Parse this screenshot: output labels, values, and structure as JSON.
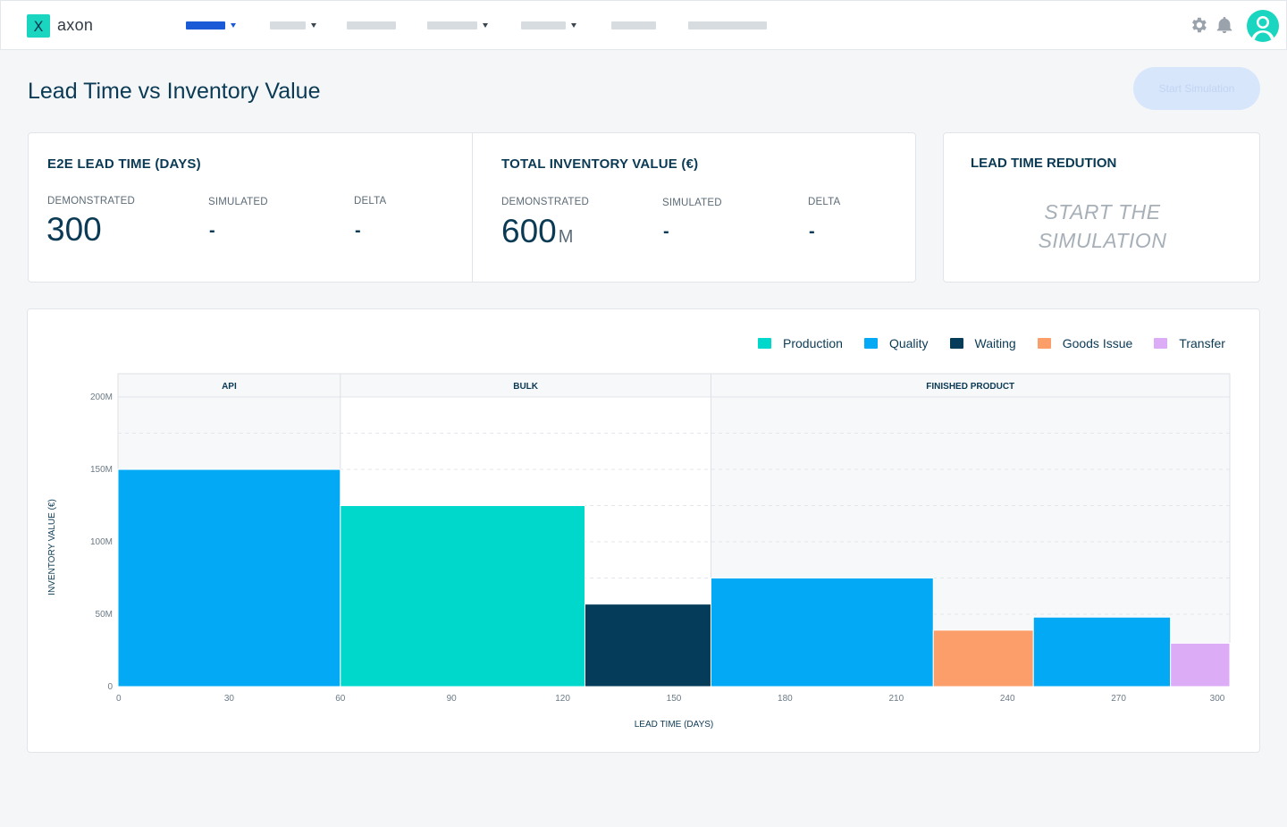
{
  "app": {
    "logo_glyph": "X",
    "name": "axon"
  },
  "nav": {
    "items": [
      {
        "active": true,
        "has_caret": true
      },
      {
        "active": false,
        "has_caret": true
      },
      {
        "active": false,
        "has_caret": false
      },
      {
        "active": false,
        "has_caret": true
      },
      {
        "active": false,
        "has_caret": true
      },
      {
        "active": false,
        "has_caret": false
      },
      {
        "active": false,
        "has_caret": false
      }
    ],
    "icons": [
      "gear-icon",
      "bell-icon",
      "user-avatar-icon"
    ]
  },
  "page": {
    "title": "Lead Time vs Inventory Value",
    "start_button": "Start Simulation"
  },
  "kpis": {
    "lead_time": {
      "title": "E2E LEAD TIME (DAYS)",
      "demonstrated_label": "DEMONSTRATED",
      "demonstrated_value": "300",
      "simulated_label": "SIMULATED",
      "simulated_value": "-",
      "delta_label": "DELTA",
      "delta_value": "-"
    },
    "inventory": {
      "title": "TOTAL INVENTORY VALUE (€)",
      "demonstrated_label": "DEMONSTRATED",
      "demonstrated_value": "600",
      "demonstrated_unit": "M",
      "simulated_label": "SIMULATED",
      "simulated_value": "-",
      "delta_label": "DELTA",
      "delta_value": "-"
    },
    "reduction": {
      "title": "LEAD TIME REDUTION",
      "message_line1": "START THE",
      "message_line2": "SIMULATION"
    }
  },
  "colors": {
    "Production": "#00d8cc",
    "Quality": "#03a9f4",
    "Waiting": "#043c5a",
    "Goods Issue": "#fb9e6a",
    "Transfer": "#dcacf7",
    "accent": "#1b5ad6"
  },
  "chart_data": {
    "type": "bar",
    "subtype": "variable-width stacked timeline",
    "xlabel": "LEAD TIME (DAYS)",
    "ylabel": "INVENTORY VALUE (€)",
    "xlim": [
      0,
      300
    ],
    "ylim": [
      0,
      200
    ],
    "x_ticks": [
      "0",
      "30",
      "60",
      "90",
      "120",
      "150",
      "180",
      "210",
      "240",
      "270",
      "300"
    ],
    "y_ticks": [
      {
        "value": 0,
        "label": "0"
      },
      {
        "value": 50,
        "label": "50M"
      },
      {
        "value": 100,
        "label": "100M"
      },
      {
        "value": 150,
        "label": "150M"
      },
      {
        "value": 200,
        "label": "200M"
      }
    ],
    "legend": [
      "Production",
      "Quality",
      "Waiting",
      "Goods Issue",
      "Transfer"
    ],
    "legend_position": "top-right",
    "grid": true,
    "sections": [
      {
        "name": "API",
        "x_start": 0,
        "x_end": 60,
        "shaded": true
      },
      {
        "name": "BULK",
        "x_start": 60,
        "x_end": 160,
        "shaded": false
      },
      {
        "name": "FINISHED PRODUCT",
        "x_start": 160,
        "x_end": 300,
        "shaded": true
      }
    ],
    "bars": [
      {
        "category": "Quality",
        "x_start": 0,
        "x_end": 60,
        "value": 150
      },
      {
        "category": "Production",
        "x_start": 60,
        "x_end": 126,
        "value": 125
      },
      {
        "category": "Waiting",
        "x_start": 126,
        "x_end": 160,
        "value": 57
      },
      {
        "category": "Quality",
        "x_start": 160,
        "x_end": 220,
        "value": 75
      },
      {
        "category": "Goods Issue",
        "x_start": 220,
        "x_end": 247,
        "value": 39
      },
      {
        "category": "Quality",
        "x_start": 247,
        "x_end": 284,
        "value": 48
      },
      {
        "category": "Transfer",
        "x_start": 284,
        "x_end": 300,
        "value": 30
      }
    ]
  }
}
